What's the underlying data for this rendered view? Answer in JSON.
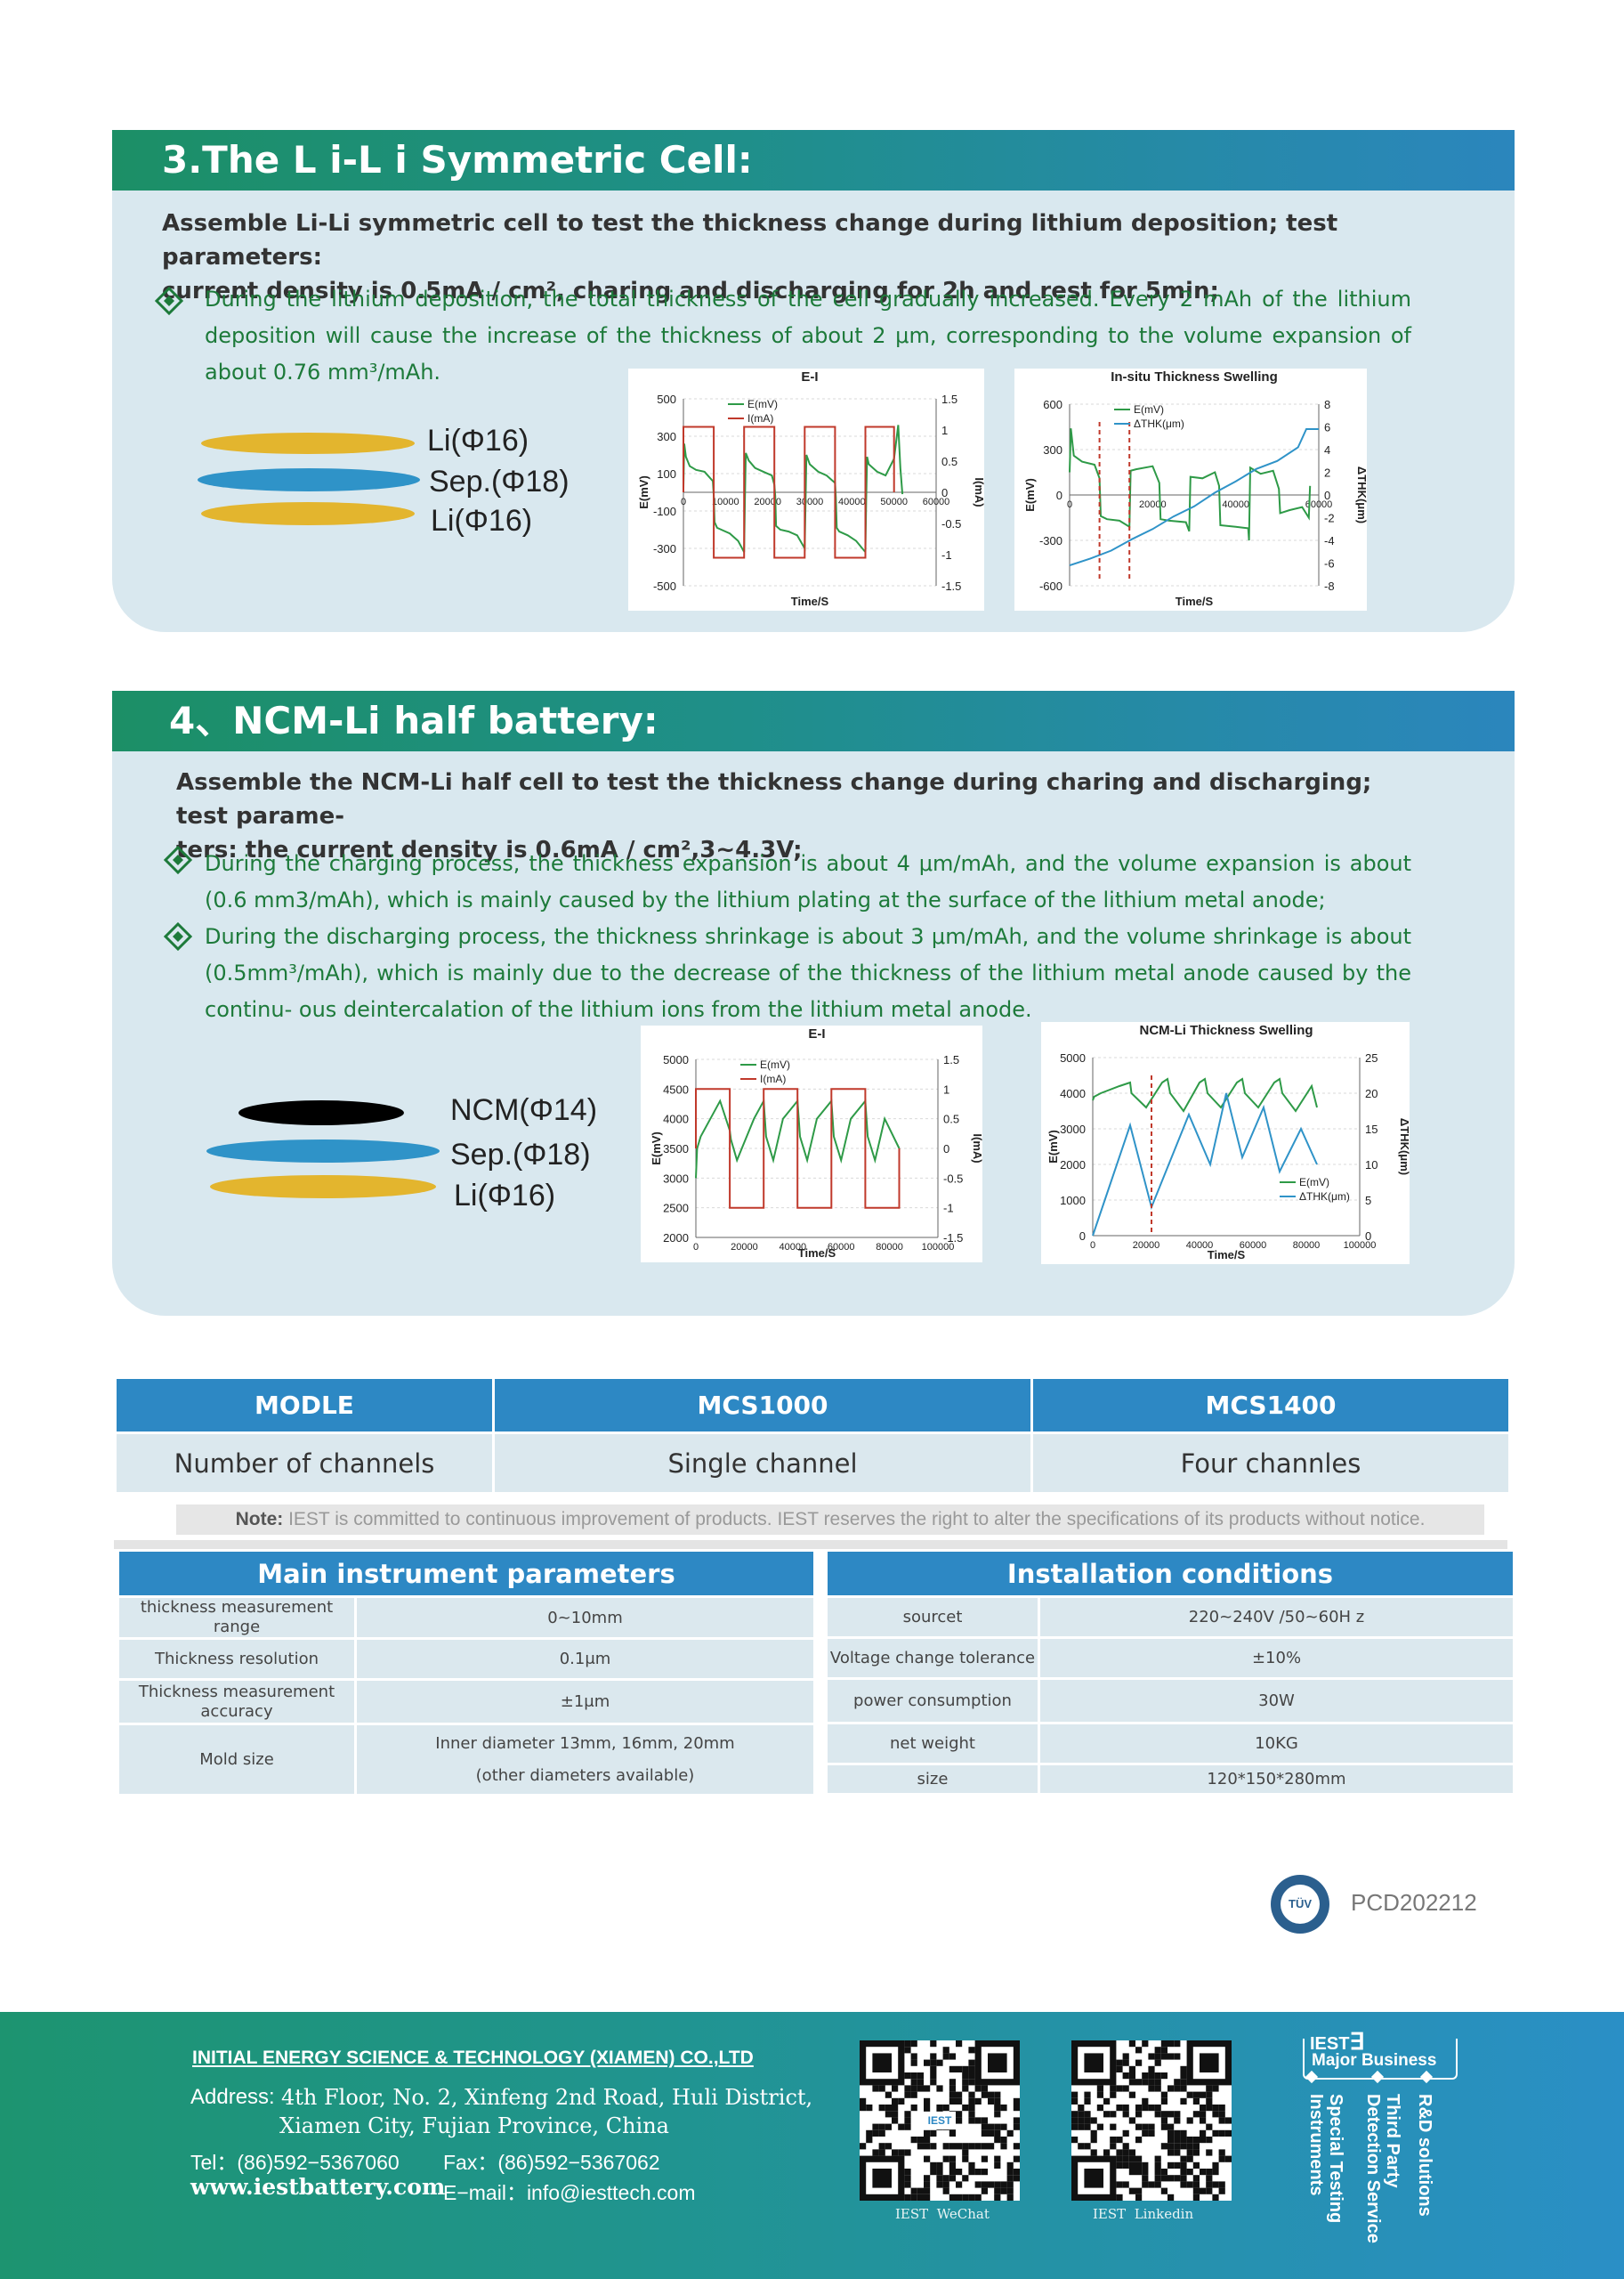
{
  "section3": {
    "title": "3.The L i-L i Symmetric Cell:",
    "lead_line1": "Assemble Li-Li symmetric cell to test the thickness change during lithium deposition; test parameters:",
    "lead_line2": "current density is 0.5mA / cm², charing and discharging for 2h and rest for 5min;",
    "bullet": "During the lithium deposition, the total thickness of the cell gradually increased. Every 2 mAh of the lithium deposition will cause the increase of the thickness of about 2 μm, corresponding to the volume expansion of about 0.76 mm³/mAh.",
    "stack": [
      "Li(Φ16)",
      "Sep.(Φ18)",
      "Li(Φ16)"
    ]
  },
  "section4": {
    "title": "4、NCM-Li half battery:",
    "lead_line1": "Assemble the NCM-Li half cell to test the thickness change during charing and discharging; test parame-",
    "lead_line2": "ters: the current density is 0.6mA / cm²,3~4.3V;",
    "bullet1": "During the charging process, the thickness expansion is about 4 μm/mAh, and the volume expansion is about (0.6 mm3/mAh), which is mainly caused by the lithium plating at the surface of the lithium metal anode;",
    "bullet2": "During the discharging process, the thickness shrinkage is about 3 μm/mAh, and the volume shrinkage is about (0.5mm³/mAh), which is mainly due to the decrease of the thickness of the lithium metal anode caused by the continu- ous deintercalation of the lithium ions from the lithium metal anode.",
    "stack": [
      "NCM(Φ14)",
      "Sep.(Φ18)",
      "Li(Φ16)"
    ]
  },
  "colors": {
    "green": "#1d7a3a",
    "blue": "#2d88c4",
    "teal": "#1c8f66",
    "gold": "#e3b52e",
    "sepblue": "#2f93c8",
    "red": "#c0392b",
    "linegreen": "#2e9a47",
    "lineblue": "#2f93c8"
  },
  "chart_data": [
    {
      "type": "line",
      "title": "E-I",
      "xlabel": "Time/S",
      "ylabel": "E(mV)",
      "y2label": "I(mA)",
      "xlim": [
        0,
        60000
      ],
      "ylim": [
        -500,
        500
      ],
      "y2lim": [
        -1.5,
        1.5
      ],
      "xticks": [
        "0",
        "10000",
        "20000",
        "30000",
        "40000",
        "50000",
        "60000"
      ],
      "yticks": [
        "500",
        "300",
        "100",
        "-100",
        "-300",
        "-500"
      ],
      "y2ticks": [
        "1.5",
        "1",
        "0.5",
        "0",
        "-0.5",
        "-1",
        "-1.5"
      ],
      "series": [
        {
          "name": "E(mV)",
          "x": [
            0,
            200,
            600,
            1500,
            3000,
            5000,
            7000,
            7200,
            7400,
            8000,
            9000,
            11000,
            13000,
            14400,
            14600,
            14800,
            15500,
            17000,
            19000,
            21000,
            21600,
            21800,
            22000,
            23000,
            25000,
            27000,
            28800,
            29000,
            29200,
            30000,
            32000,
            34000,
            36000,
            36200,
            36400,
            37000,
            39000,
            41000,
            43200,
            43400,
            43600,
            44000,
            46000,
            48000,
            50000,
            51000,
            51500,
            52000
          ],
          "y": [
            20,
            260,
            190,
            140,
            120,
            110,
            60,
            -20,
            -160,
            -190,
            -200,
            -220,
            -260,
            -320,
            -40,
            210,
            170,
            130,
            110,
            90,
            40,
            -20,
            -180,
            -200,
            -210,
            -230,
            -300,
            -40,
            200,
            150,
            110,
            90,
            50,
            -30,
            -190,
            -210,
            -230,
            -260,
            -320,
            -40,
            190,
            150,
            110,
            90,
            180,
            360,
            130,
            -10
          ]
        },
        {
          "name": "I(mA)",
          "x": [
            0,
            0,
            7200,
            7200,
            14400,
            14400,
            21600,
            21600,
            28800,
            28800,
            36000,
            36000,
            43200,
            43200,
            50000,
            50000
          ],
          "y": [
            0,
            1.05,
            1.05,
            -1.05,
            -1.05,
            1.05,
            1.05,
            -1.05,
            -1.05,
            1.05,
            1.05,
            -1.05,
            -1.05,
            1.05,
            1.05,
            0
          ]
        }
      ]
    },
    {
      "type": "line",
      "title": "In-situ Thickness Swelling",
      "xlabel": "Time/S",
      "ylabel": "E(mV)",
      "y2label": "ΔTHK(μm)",
      "xlim": [
        0,
        60000
      ],
      "ylim": [
        -600,
        600
      ],
      "y2lim": [
        -8,
        8
      ],
      "xticks": [
        "0",
        "20000",
        "40000",
        "60000"
      ],
      "yticks": [
        "600",
        "300",
        "0",
        "-300",
        "-600"
      ],
      "y2ticks": [
        "8",
        "6",
        "4",
        "2",
        "0",
        "-2",
        "-4",
        "-6",
        "-8"
      ],
      "series": [
        {
          "name": "E(mV)",
          "x": [
            0,
            300,
            1000,
            3000,
            6000,
            7200,
            7500,
            9000,
            12000,
            14400,
            14700,
            16000,
            20000,
            21600,
            21900,
            24000,
            28000,
            28800,
            29100,
            32000,
            35000,
            36000,
            36300,
            40000,
            43000,
            43200,
            43500,
            46000,
            49000,
            50400,
            50700,
            53000,
            56000,
            57600,
            57900
          ],
          "y": [
            150,
            440,
            260,
            220,
            200,
            110,
            -140,
            -160,
            -170,
            -210,
            160,
            170,
            190,
            80,
            -160,
            -170,
            -180,
            -240,
            120,
            110,
            150,
            60,
            -200,
            -210,
            -220,
            -300,
            180,
            140,
            160,
            40,
            -120,
            -100,
            -80,
            -150,
            60
          ]
        },
        {
          "name": "ΔTHK(μm)",
          "x": [
            0,
            5000,
            10000,
            15000,
            20000,
            25000,
            30000,
            35000,
            40000,
            45000,
            50000,
            55000,
            57000,
            60000
          ],
          "y": [
            -6.2,
            -5.6,
            -4.9,
            -3.9,
            -3.0,
            -1.9,
            -1.0,
            0.2,
            1.2,
            2.3,
            3.0,
            4.2,
            5.8,
            5.8
          ]
        }
      ],
      "markers_x": [
        7200,
        14400
      ]
    },
    {
      "type": "line",
      "title": "E-I",
      "xlabel": "Time/S",
      "ylabel": "E(mV)",
      "y2label": "I(mA)",
      "xlim": [
        0,
        100000
      ],
      "ylim": [
        2000,
        5000
      ],
      "y2lim": [
        -1.5,
        1.5
      ],
      "xticks": [
        "0",
        "20000",
        "40000",
        "60000",
        "80000",
        "100000"
      ],
      "yticks": [
        "5000",
        "4500",
        "4000",
        "3500",
        "3000",
        "2500",
        "2000"
      ],
      "y2ticks": [
        "1.5",
        "1",
        "0.5",
        "0",
        "-0.5",
        "-1",
        "-1.5"
      ],
      "series": [
        {
          "name": "E(mV)",
          "x": [
            0,
            500,
            2000,
            6000,
            10000,
            14000,
            14500,
            17000,
            20000,
            24000,
            28000,
            29000,
            32000,
            36000,
            42000,
            43000,
            46000,
            50000,
            56000,
            57000,
            60000,
            64000,
            70000,
            71000,
            74000,
            78000,
            84000
          ],
          "y": [
            3000,
            3500,
            3700,
            4000,
            4300,
            3800,
            3650,
            3300,
            3600,
            4000,
            4300,
            3700,
            3300,
            4000,
            4300,
            3700,
            3300,
            4000,
            4300,
            3700,
            3300,
            4000,
            4300,
            3700,
            3300,
            4000,
            3500
          ]
        },
        {
          "name": "I(mA)",
          "x": [
            0,
            0,
            14000,
            14000,
            28000,
            28000,
            42000,
            42000,
            56000,
            56000,
            70000,
            70000,
            84000,
            84000
          ],
          "y": [
            0,
            1,
            1,
            -1,
            -1,
            1,
            1,
            -1,
            -1,
            1,
            1,
            -1,
            -1,
            0
          ]
        }
      ]
    },
    {
      "type": "line",
      "title": "NCM-Li Thickness Swelling",
      "xlabel": "Time/S",
      "ylabel": "E(mV)",
      "y2label": "ΔTHK(μm)",
      "xlim": [
        0,
        100000
      ],
      "ylim": [
        0,
        5000
      ],
      "y2lim": [
        0,
        25
      ],
      "xticks": [
        "0",
        "20000",
        "40000",
        "60000",
        "80000",
        "100000"
      ],
      "yticks": [
        "5000",
        "4000",
        "3000",
        "2000",
        "1000",
        "0"
      ],
      "y2ticks": [
        "25",
        "20",
        "15",
        "10",
        "5",
        "0"
      ],
      "series": [
        {
          "name": "E(mV)",
          "x": [
            0,
            500,
            3000,
            10000,
            14000,
            14500,
            20000,
            26000,
            28000,
            29000,
            34000,
            40000,
            42000,
            43000,
            48000,
            54000,
            56000,
            57000,
            62000,
            68000,
            70000,
            71000,
            76000,
            82000,
            84000
          ],
          "y": [
            3800,
            3900,
            4000,
            4200,
            4300,
            4000,
            3600,
            4300,
            4400,
            4000,
            3500,
            4300,
            4400,
            4000,
            3600,
            4300,
            4400,
            4000,
            3600,
            4300,
            4400,
            4000,
            3500,
            4200,
            3600
          ]
        },
        {
          "name": "ΔTHK(μm)",
          "x": [
            0,
            14000,
            22000,
            36000,
            44000,
            50000,
            56000,
            64000,
            70000,
            78000,
            84000
          ],
          "y": [
            0,
            15.5,
            4,
            17,
            10,
            20,
            11,
            18,
            9,
            15,
            10
          ]
        }
      ],
      "markers_x": [
        22000
      ]
    }
  ],
  "model_table": {
    "headers": [
      "MODLE",
      "MCS1000",
      "MCS1400"
    ],
    "row": [
      "Number of channels",
      "Single channel",
      "Four channles"
    ]
  },
  "note_label": "Note:",
  "note_text": " IEST is committed to continuous improvement of products. IEST reserves the right to alter the specifications of its products without notice.",
  "params": {
    "title": "Main instrument parameters",
    "rows": [
      [
        "thickness measurement range",
        "0~10mm"
      ],
      [
        "Thickness resolution",
        "0.1μm"
      ],
      [
        "Thickness measurement accuracy",
        "±1μm"
      ],
      [
        "Mold size",
        "Inner diameter 13mm, 16mm, 20mm",
        "(other diameters available)"
      ]
    ]
  },
  "install": {
    "title": "Installation conditions",
    "rows": [
      [
        "sourcet",
        "220~240V /50~60H z"
      ],
      [
        "Voltage change tolerance",
        "±10%"
      ],
      [
        "power consumption",
        "30W"
      ],
      [
        "net weight",
        "10KG"
      ],
      [
        "size",
        "120*150*280mm"
      ]
    ]
  },
  "cert": {
    "badge": "TÜV",
    "code": "PCD202212"
  },
  "footer": {
    "company": "INITIAL ENERGY SCIENCE & TECHNOLOGY (XIAMEN) CO.,LTD",
    "address_label": "Address:",
    "address_line1": "4th Floor, No. 2, Xinfeng 2nd Road, Huli District,",
    "address_line2": "Xiamen City, Fujian Province, China",
    "tel": "Tel：(86)592−5367060",
    "fax": "Fax：(86)592−5367062",
    "website": "www.iestbattery.com",
    "email": "E−mail：info@iesttech.com",
    "qr1_center": "IEST",
    "qr1_caption": "IEST  WeChat",
    "qr2_caption": "IEST  Linkedin",
    "brand": "IEST",
    "brand_mark": "∃",
    "major": "Major Business",
    "business": [
      "R&D solutions",
      "Third Party Detection Service",
      "Special Testing Instruments"
    ]
  }
}
